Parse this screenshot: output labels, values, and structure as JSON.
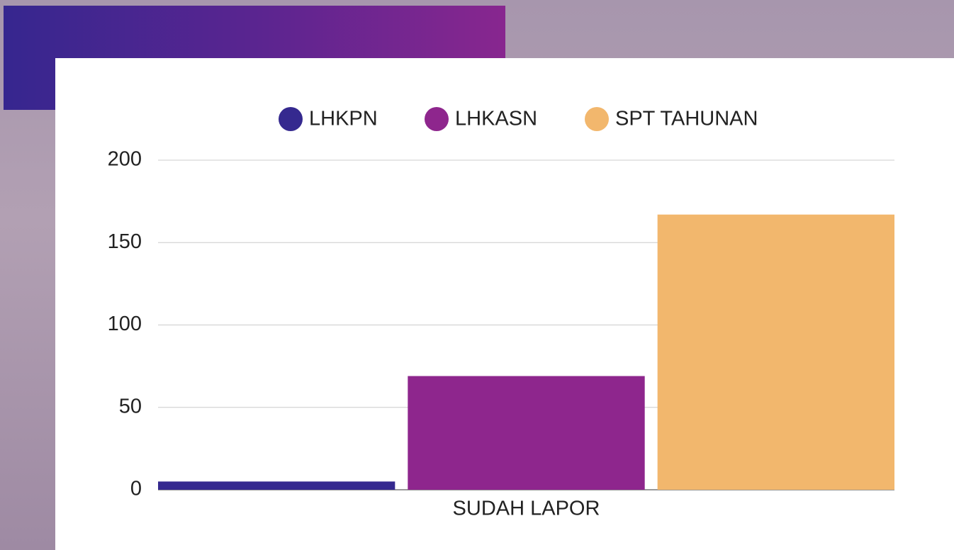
{
  "chart_data": {
    "type": "bar",
    "categories": [
      "SUDAH LAPOR"
    ],
    "series": [
      {
        "name": "LHKPN",
        "color": "#35298f",
        "values": [
          5
        ]
      },
      {
        "name": "LHKASN",
        "color": "#8e268d",
        "values": [
          69
        ]
      },
      {
        "name": "SPT TAHUNAN",
        "color": "#f2b76d",
        "values": [
          167
        ]
      }
    ],
    "ylim": [
      0,
      200
    ],
    "yticks": [
      0,
      50,
      100,
      150,
      200
    ],
    "grid": true,
    "legend": "top"
  }
}
